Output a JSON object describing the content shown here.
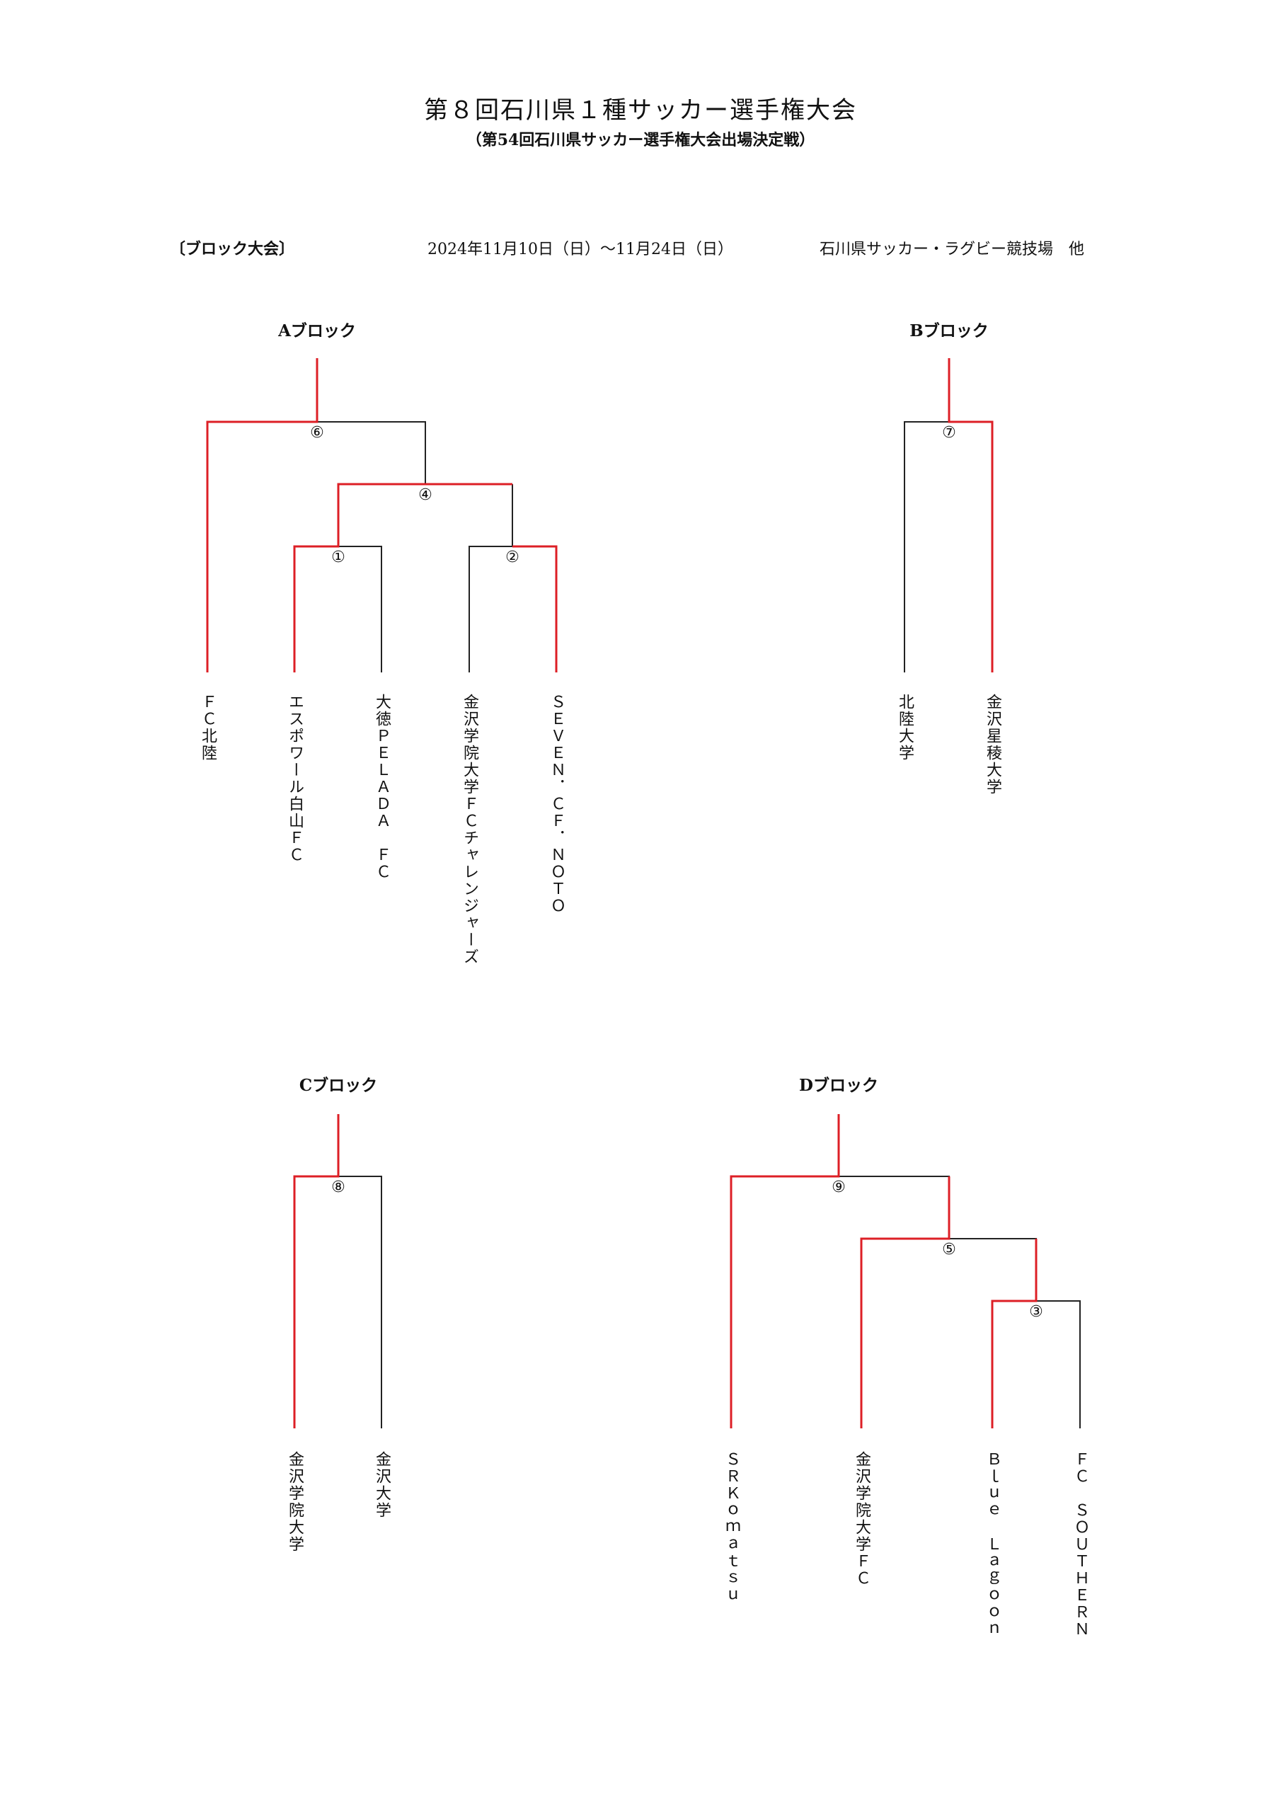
{
  "title": "第８回石川県１種サッカー選手権大会",
  "subtitle": "（第54回石川県サッカー選手権大会出場決定戦）",
  "info": {
    "section": "〔ブロック大会〕",
    "dates": "2024年11月10日（日）～11月24日（日）",
    "venue": "石川県サッカー・ラグビー競技場　他"
  },
  "colors": {
    "winner_line": "#dd1f26",
    "line": "#222222"
  },
  "blocks": [
    {
      "name": "Aブロック",
      "teams": [
        "ＦＣ北陸",
        "エスポワール白山ＦＣ",
        "大徳ＰＥＬＡＤＡ　ＦＣ",
        "金沢学院大学ＦＣチャレンジャーズ",
        "ＳＥＶＥＮ．ＣＦ．ＮＯＴＯ"
      ],
      "matches": [
        "⑥",
        "④",
        "①",
        "②"
      ]
    },
    {
      "name": "Bブロック",
      "teams": [
        "北陸大学",
        "金沢星稜大学"
      ],
      "matches": [
        "⑦"
      ]
    },
    {
      "name": "Cブロック",
      "teams": [
        "金沢学院大学",
        "金沢大学"
      ],
      "matches": [
        "⑧"
      ]
    },
    {
      "name": "Dブロック",
      "teams": [
        "ＳＲＫｏｍａｔｓｕ",
        "金沢学院大学ＦＣ",
        "Ｂｌｕｅ　Ｌａｇｏｏｎ",
        "ＦＣ　ＳＯＵＴＨＥＲＮ"
      ],
      "matches": [
        "⑨",
        "⑤",
        "③"
      ]
    }
  ]
}
